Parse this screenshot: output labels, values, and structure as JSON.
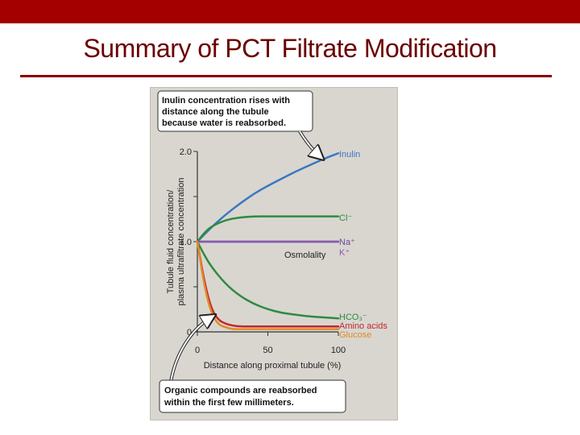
{
  "slide": {
    "title": "Summary of PCT Filtrate Modification",
    "bar_color": "#a50000",
    "title_color": "#6b0000"
  },
  "callouts": {
    "top": [
      "Inulin concentration rises with",
      "distance along the tubule",
      "because water is reabsorbed."
    ],
    "bottom": [
      "Organic compounds are reabsorbed",
      "within the first few millimeters."
    ]
  },
  "chart_data": {
    "type": "line",
    "xlabel": "Distance along proximal tubule (%)",
    "ylabel": [
      "Tubule fluid concentration/",
      "plasma ultrafiltrate concentration"
    ],
    "xlim": [
      0,
      100
    ],
    "ylim": [
      0,
      2.0
    ],
    "x_ticks": [
      0,
      50,
      100
    ],
    "y_tick_labels": [
      {
        "value": 0,
        "label": "0"
      },
      {
        "value": 1.0,
        "label": "1.0"
      },
      {
        "value": 2.0,
        "label": "2.0"
      }
    ],
    "y_minor_ticks": [
      0.5,
      1.5
    ],
    "grid": false,
    "series": [
      {
        "name": "Inulin",
        "color": "#3a78c0",
        "x": [
          0,
          10,
          20,
          30,
          40,
          50,
          60,
          70,
          80,
          90,
          100
        ],
        "y": [
          1.0,
          1.16,
          1.3,
          1.42,
          1.53,
          1.62,
          1.7,
          1.78,
          1.85,
          1.92,
          1.98
        ]
      },
      {
        "name": "Cl⁻",
        "color": "#2e8b3e",
        "x": [
          0,
          5,
          10,
          20,
          30,
          40,
          50,
          60,
          80,
          100
        ],
        "y": [
          1.0,
          1.1,
          1.17,
          1.24,
          1.27,
          1.28,
          1.28,
          1.28,
          1.28,
          1.28
        ]
      },
      {
        "name": "Na⁺",
        "color": "#6a4aa0",
        "x": [
          0,
          100
        ],
        "y": [
          1.0,
          1.0
        ]
      },
      {
        "name": "Osmolality",
        "color": "#333333",
        "x": [
          0,
          100
        ],
        "y": [
          1.0,
          1.0
        ]
      },
      {
        "name": "K⁺",
        "color": "#8a5ab0",
        "x": [
          0,
          100
        ],
        "y": [
          1.0,
          1.0
        ]
      },
      {
        "name": "HCO₃⁻",
        "color": "#2e8b3e",
        "x": [
          0,
          5,
          10,
          20,
          30,
          40,
          50,
          60,
          70,
          80,
          90,
          100
        ],
        "y": [
          1.0,
          0.85,
          0.72,
          0.53,
          0.4,
          0.31,
          0.25,
          0.21,
          0.19,
          0.17,
          0.16,
          0.15
        ]
      },
      {
        "name": "Amino acids",
        "color": "#c0282c",
        "x": [
          0,
          5,
          10,
          15,
          20,
          25,
          30,
          40,
          50,
          100
        ],
        "y": [
          1.0,
          0.55,
          0.25,
          0.13,
          0.09,
          0.07,
          0.06,
          0.06,
          0.06,
          0.06
        ]
      },
      {
        "name": "Glucose",
        "color": "#e08a2a",
        "x": [
          0,
          5,
          10,
          15,
          20,
          25,
          30,
          40,
          50,
          100
        ],
        "y": [
          1.0,
          0.5,
          0.2,
          0.08,
          0.05,
          0.03,
          0.03,
          0.03,
          0.03,
          0.03
        ]
      }
    ],
    "series_labels": [
      {
        "text": "Inulin",
        "color": "#3a78c0"
      },
      {
        "text": "Cl⁻",
        "color": "#2e8b3e"
      },
      {
        "text": "Na⁺",
        "color": "#6a4aa0"
      },
      {
        "text": "Osmolality",
        "color": "#222222"
      },
      {
        "text": "K⁺",
        "color": "#8a5ab0"
      },
      {
        "text": "HCO₃⁻",
        "color": "#2e8b3e"
      },
      {
        "text": "Amino acids",
        "color": "#c0282c"
      },
      {
        "text": "Glucose",
        "color": "#e08a2a"
      }
    ]
  }
}
